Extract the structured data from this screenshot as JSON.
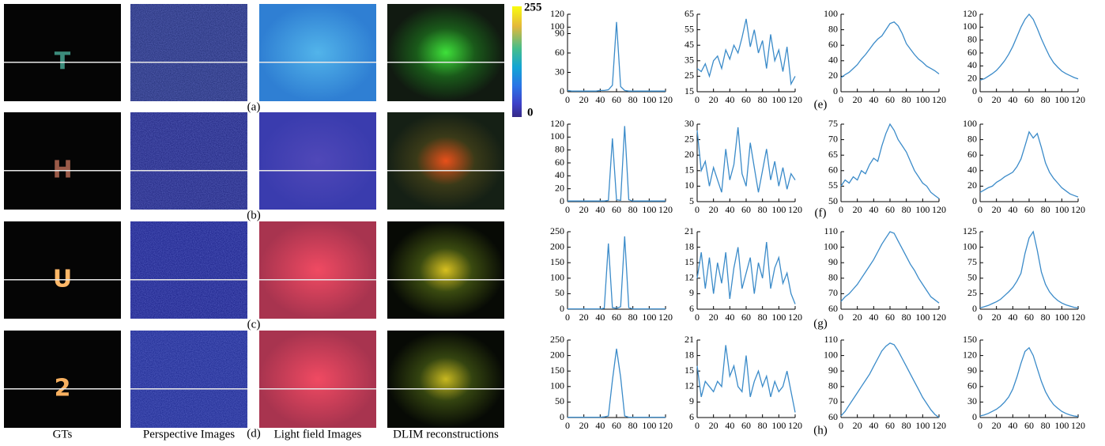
{
  "figure": {
    "columns": [
      "GTs",
      "Perspective Images",
      "Light field Images",
      "DLIM reconstructions"
    ],
    "rows": [
      {
        "label": "(a)",
        "glyph": "T",
        "plot_label": "(e)"
      },
      {
        "label": "(b)",
        "glyph": "H",
        "plot_label": "(f)"
      },
      {
        "label": "(c)",
        "glyph": "U",
        "plot_label": "(g)"
      },
      {
        "label": "(d)",
        "glyph": "2",
        "plot_label": "(h)"
      }
    ],
    "colorbar": {
      "max": 255,
      "min": 0
    }
  },
  "chart_data": [
    {
      "type": "line",
      "color": "#3b8bc9",
      "x": [
        0,
        5,
        10,
        15,
        20,
        25,
        30,
        35,
        40,
        45,
        50,
        55,
        60,
        65,
        70,
        75,
        80,
        85,
        90,
        95,
        100,
        105,
        110,
        115,
        120
      ],
      "values": [
        2,
        1,
        1,
        1,
        1,
        1,
        1,
        1,
        2,
        2,
        3,
        10,
        108,
        8,
        2,
        1,
        1,
        1,
        1,
        1,
        1,
        1,
        1,
        1,
        1
      ],
      "xlim": [
        0,
        120
      ],
      "ylim": [
        0,
        120
      ],
      "xticks": [
        0,
        20,
        40,
        60,
        80,
        100,
        120
      ],
      "yticks": [
        0,
        30,
        60,
        90,
        100,
        120
      ]
    },
    {
      "type": "line",
      "color": "#3b8bc9",
      "x": [
        0,
        5,
        10,
        15,
        20,
        25,
        30,
        35,
        40,
        45,
        50,
        55,
        60,
        65,
        70,
        75,
        80,
        85,
        90,
        95,
        100,
        105,
        110,
        115,
        120
      ],
      "values": [
        30,
        28,
        33,
        25,
        35,
        38,
        30,
        42,
        36,
        45,
        40,
        50,
        62,
        44,
        55,
        40,
        48,
        30,
        52,
        35,
        42,
        28,
        44,
        20,
        25
      ],
      "xlim": [
        0,
        120
      ],
      "ylim": [
        15,
        65
      ],
      "xticks": [
        0,
        20,
        40,
        60,
        80,
        100,
        120
      ],
      "yticks": [
        15,
        25,
        35,
        45,
        55,
        65
      ]
    },
    {
      "type": "line",
      "color": "#3b8bc9",
      "x": [
        0,
        5,
        10,
        15,
        20,
        25,
        30,
        35,
        40,
        45,
        50,
        55,
        60,
        65,
        70,
        75,
        80,
        85,
        90,
        95,
        100,
        105,
        110,
        115,
        120
      ],
      "values": [
        18,
        22,
        25,
        30,
        35,
        42,
        48,
        55,
        62,
        68,
        72,
        80,
        88,
        90,
        85,
        75,
        62,
        55,
        48,
        42,
        38,
        33,
        30,
        27,
        23
      ],
      "xlim": [
        0,
        120
      ],
      "ylim": [
        0,
        100
      ],
      "xticks": [
        0,
        20,
        40,
        60,
        80,
        100,
        120
      ],
      "yticks": [
        0,
        20,
        40,
        60,
        80,
        100
      ]
    },
    {
      "type": "line",
      "color": "#3b8bc9",
      "x": [
        0,
        5,
        10,
        15,
        20,
        25,
        30,
        35,
        40,
        45,
        50,
        55,
        60,
        65,
        70,
        75,
        80,
        85,
        90,
        95,
        100,
        105,
        110,
        115,
        120
      ],
      "values": [
        18,
        20,
        24,
        28,
        33,
        40,
        48,
        58,
        70,
        85,
        100,
        112,
        120,
        112,
        98,
        82,
        68,
        55,
        45,
        38,
        32,
        28,
        25,
        22,
        20
      ],
      "xlim": [
        0,
        120
      ],
      "ylim": [
        0,
        120
      ],
      "xticks": [
        0,
        20,
        40,
        60,
        80,
        100,
        120
      ],
      "yticks": [
        0,
        20,
        40,
        60,
        80,
        100,
        120
      ]
    },
    {
      "type": "line",
      "color": "#3b8bc9",
      "x": [
        0,
        5,
        10,
        15,
        20,
        25,
        30,
        35,
        40,
        45,
        50,
        55,
        60,
        65,
        70,
        75,
        80,
        85,
        90,
        95,
        100,
        105,
        110,
        115,
        120
      ],
      "values": [
        1,
        1,
        1,
        1,
        1,
        1,
        1,
        1,
        1,
        1,
        2,
        98,
        3,
        2,
        117,
        3,
        1,
        1,
        1,
        1,
        1,
        1,
        1,
        1,
        1
      ],
      "xlim": [
        0,
        120
      ],
      "ylim": [
        0,
        120
      ],
      "xticks": [
        0,
        20,
        40,
        60,
        80,
        100,
        120
      ],
      "yticks": [
        0,
        20,
        40,
        60,
        80,
        100,
        120
      ]
    },
    {
      "type": "line",
      "color": "#3b8bc9",
      "x": [
        0,
        5,
        10,
        15,
        20,
        25,
        30,
        35,
        40,
        45,
        50,
        55,
        60,
        65,
        70,
        75,
        80,
        85,
        90,
        95,
        100,
        105,
        110,
        115,
        120
      ],
      "values": [
        28,
        15,
        18,
        10,
        16,
        12,
        8,
        22,
        12,
        17,
        29,
        14,
        10,
        24,
        16,
        8,
        15,
        22,
        12,
        18,
        10,
        16,
        9,
        14,
        12
      ],
      "xlim": [
        0,
        120
      ],
      "ylim": [
        5,
        30
      ],
      "xticks": [
        0,
        20,
        40,
        60,
        80,
        100,
        120
      ],
      "yticks": [
        5,
        10,
        15,
        20,
        25,
        30
      ]
    },
    {
      "type": "line",
      "color": "#3b8bc9",
      "x": [
        0,
        5,
        10,
        15,
        20,
        25,
        30,
        35,
        40,
        45,
        50,
        55,
        60,
        65,
        70,
        75,
        80,
        85,
        90,
        95,
        100,
        105,
        110,
        115,
        120
      ],
      "values": [
        55,
        57,
        56,
        58,
        57,
        60,
        59,
        62,
        64,
        63,
        68,
        72,
        75,
        73,
        70,
        68,
        66,
        63,
        60,
        58,
        56,
        55,
        53,
        52,
        51
      ],
      "xlim": [
        0,
        120
      ],
      "ylim": [
        50,
        75
      ],
      "xticks": [
        0,
        20,
        40,
        60,
        80,
        100,
        120
      ],
      "yticks": [
        50,
        55,
        60,
        65,
        70,
        75
      ]
    },
    {
      "type": "line",
      "color": "#3b8bc9",
      "x": [
        0,
        5,
        10,
        15,
        20,
        25,
        30,
        35,
        40,
        45,
        50,
        55,
        60,
        65,
        70,
        75,
        80,
        85,
        90,
        95,
        100,
        105,
        110,
        115,
        120
      ],
      "values": [
        12,
        15,
        18,
        20,
        25,
        28,
        32,
        35,
        38,
        45,
        55,
        72,
        90,
        82,
        88,
        70,
        50,
        38,
        30,
        24,
        18,
        14,
        10,
        8,
        6
      ],
      "xlim": [
        0,
        120
      ],
      "ylim": [
        0,
        100
      ],
      "xticks": [
        0,
        20,
        40,
        60,
        80,
        100,
        120
      ],
      "yticks": [
        0,
        20,
        40,
        60,
        80,
        100
      ]
    },
    {
      "type": "line",
      "color": "#3b8bc9",
      "x": [
        0,
        5,
        10,
        15,
        20,
        25,
        30,
        35,
        40,
        45,
        50,
        55,
        60,
        65,
        70,
        75,
        80,
        85,
        90,
        95,
        100,
        105,
        110,
        115,
        120
      ],
      "values": [
        1,
        1,
        1,
        1,
        1,
        1,
        1,
        1,
        1,
        3,
        212,
        5,
        3,
        8,
        235,
        5,
        1,
        1,
        1,
        1,
        1,
        1,
        1,
        1,
        1
      ],
      "xlim": [
        0,
        120
      ],
      "ylim": [
        0,
        250
      ],
      "xticks": [
        0,
        20,
        40,
        60,
        80,
        100,
        120
      ],
      "yticks": [
        0,
        50,
        100,
        150,
        200,
        250
      ]
    },
    {
      "type": "line",
      "color": "#3b8bc9",
      "x": [
        0,
        5,
        10,
        15,
        20,
        25,
        30,
        35,
        40,
        45,
        50,
        55,
        60,
        65,
        70,
        75,
        80,
        85,
        90,
        95,
        100,
        105,
        110,
        115,
        120
      ],
      "values": [
        12,
        17,
        10,
        16,
        9,
        15,
        11,
        17,
        8,
        14,
        18,
        10,
        13,
        16,
        9,
        15,
        12,
        19,
        10,
        14,
        16,
        11,
        13,
        9,
        7
      ],
      "xlim": [
        0,
        120
      ],
      "ylim": [
        6,
        21
      ],
      "xticks": [
        0,
        20,
        40,
        60,
        80,
        100,
        120
      ],
      "yticks": [
        6,
        9,
        12,
        15,
        18,
        21
      ]
    },
    {
      "type": "line",
      "color": "#3b8bc9",
      "x": [
        0,
        5,
        10,
        15,
        20,
        25,
        30,
        35,
        40,
        45,
        50,
        55,
        60,
        65,
        70,
        75,
        80,
        85,
        90,
        95,
        100,
        105,
        110,
        115,
        120
      ],
      "values": [
        65,
        68,
        70,
        73,
        76,
        80,
        84,
        88,
        92,
        97,
        102,
        106,
        110,
        109,
        104,
        99,
        94,
        89,
        85,
        80,
        76,
        72,
        68,
        66,
        64
      ],
      "xlim": [
        0,
        120
      ],
      "ylim": [
        60,
        110
      ],
      "xticks": [
        0,
        20,
        40,
        60,
        80,
        100,
        120
      ],
      "yticks": [
        60,
        70,
        80,
        90,
        100,
        110
      ]
    },
    {
      "type": "line",
      "color": "#3b8bc9",
      "x": [
        0,
        5,
        10,
        15,
        20,
        25,
        30,
        35,
        40,
        45,
        50,
        55,
        60,
        65,
        70,
        75,
        80,
        85,
        90,
        95,
        100,
        105,
        110,
        115,
        120
      ],
      "values": [
        2,
        4,
        6,
        9,
        12,
        16,
        22,
        28,
        35,
        45,
        58,
        90,
        115,
        125,
        95,
        60,
        40,
        28,
        20,
        14,
        10,
        7,
        5,
        3,
        2
      ],
      "xlim": [
        0,
        120
      ],
      "ylim": [
        0,
        125
      ],
      "xticks": [
        0,
        20,
        40,
        60,
        80,
        100,
        120
      ],
      "yticks": [
        0,
        25,
        50,
        75,
        100,
        125
      ]
    },
    {
      "type": "line",
      "color": "#3b8bc9",
      "x": [
        0,
        5,
        10,
        15,
        20,
        25,
        30,
        35,
        40,
        45,
        50,
        55,
        60,
        65,
        70,
        75,
        80,
        85,
        90,
        95,
        100,
        105,
        110,
        115,
        120
      ],
      "values": [
        1,
        1,
        1,
        1,
        1,
        1,
        1,
        1,
        1,
        2,
        5,
        120,
        222,
        130,
        5,
        1,
        1,
        1,
        1,
        1,
        1,
        1,
        1,
        1,
        1
      ],
      "xlim": [
        0,
        120
      ],
      "ylim": [
        0,
        250
      ],
      "xticks": [
        0,
        20,
        40,
        60,
        80,
        100,
        120
      ],
      "yticks": [
        0,
        50,
        100,
        150,
        200,
        250
      ]
    },
    {
      "type": "line",
      "color": "#3b8bc9",
      "x": [
        0,
        5,
        10,
        15,
        20,
        25,
        30,
        35,
        40,
        45,
        50,
        55,
        60,
        65,
        70,
        75,
        80,
        85,
        90,
        95,
        100,
        105,
        110,
        115,
        120
      ],
      "values": [
        16,
        10,
        13,
        12,
        11,
        13,
        12,
        20,
        14,
        16,
        12,
        11,
        18,
        10,
        13,
        15,
        12,
        14,
        10,
        13,
        11,
        12,
        15,
        11,
        7
      ],
      "xlim": [
        0,
        120
      ],
      "ylim": [
        6,
        21
      ],
      "xticks": [
        0,
        20,
        40,
        60,
        80,
        100,
        120
      ],
      "yticks": [
        6,
        9,
        12,
        15,
        18,
        21
      ]
    },
    {
      "type": "line",
      "color": "#3b8bc9",
      "x": [
        0,
        5,
        10,
        15,
        20,
        25,
        30,
        35,
        40,
        45,
        50,
        55,
        60,
        65,
        70,
        75,
        80,
        85,
        90,
        95,
        100,
        105,
        110,
        115,
        120
      ],
      "values": [
        61,
        64,
        68,
        72,
        76,
        80,
        84,
        88,
        93,
        98,
        103,
        106,
        108,
        107,
        103,
        98,
        93,
        88,
        83,
        78,
        73,
        69,
        65,
        62,
        60
      ],
      "xlim": [
        0,
        120
      ],
      "ylim": [
        60,
        110
      ],
      "xticks": [
        0,
        20,
        40,
        60,
        80,
        100,
        120
      ],
      "yticks": [
        60,
        70,
        80,
        90,
        100,
        110
      ]
    },
    {
      "type": "line",
      "color": "#3b8bc9",
      "x": [
        0,
        5,
        10,
        15,
        20,
        25,
        30,
        35,
        40,
        45,
        50,
        55,
        60,
        65,
        70,
        75,
        80,
        85,
        90,
        95,
        100,
        105,
        110,
        115,
        120
      ],
      "values": [
        3,
        5,
        8,
        12,
        16,
        22,
        30,
        40,
        55,
        78,
        105,
        128,
        135,
        120,
        95,
        70,
        50,
        36,
        25,
        18,
        12,
        8,
        5,
        3,
        2
      ],
      "xlim": [
        0,
        120
      ],
      "ylim": [
        0,
        150
      ],
      "xticks": [
        0,
        20,
        40,
        60,
        80,
        100,
        120
      ],
      "yticks": [
        0,
        30,
        60,
        90,
        120,
        150
      ]
    }
  ]
}
